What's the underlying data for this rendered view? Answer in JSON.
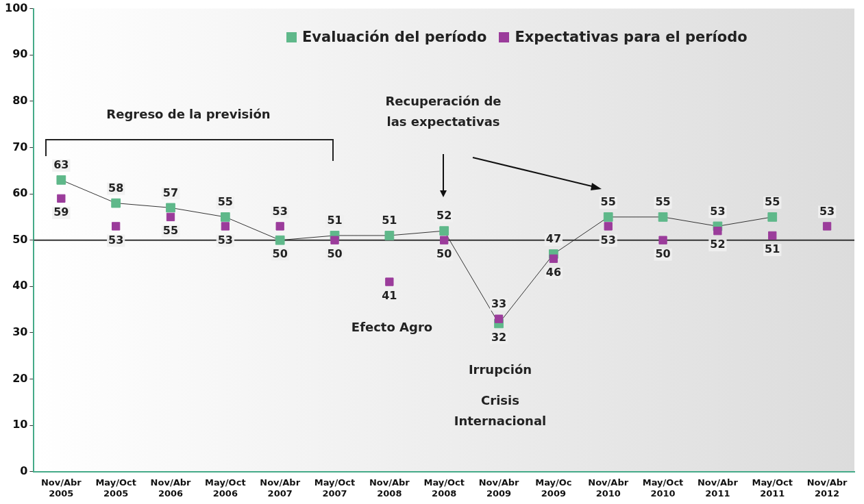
{
  "chart_data": {
    "type": "line",
    "categories": [
      "Nov/Abr 2005",
      "May/Oct 2005",
      "Nov/Abr 2006",
      "May/Oct 2006",
      "Nov/Abr 2007",
      "May/Oct 2007",
      "Nov/Abr 2008",
      "May/Oct 2008",
      "Nov/Abr 2009",
      "May/Oc 2009",
      "Nov/Abr 2010",
      "May/Oct 2010",
      "Nov/Abr 2011",
      "May/Oct 2011",
      "Nov/Abr 2012"
    ],
    "series": [
      {
        "name": "Evaluación del período",
        "type": "line",
        "color": "#5fb88a",
        "values": [
          63,
          58,
          57,
          55,
          50,
          51,
          51,
          52,
          32,
          47,
          55,
          55,
          53,
          55,
          null
        ]
      },
      {
        "name": "Expectativas para el período",
        "type": "scatter",
        "color": "#9b3c9b",
        "values": [
          59,
          53,
          55,
          53,
          53,
          50,
          41,
          50,
          33,
          46,
          53,
          50,
          52,
          51,
          53
        ]
      }
    ],
    "ylim": [
      0,
      100
    ],
    "yticks": [
      0,
      10,
      20,
      30,
      40,
      50,
      60,
      70,
      80,
      90,
      100
    ],
    "ref_lines": [
      {
        "axis": "y",
        "value": 50
      }
    ],
    "annotations": [
      "Regreso de la previsión",
      "Recuperación de las expectativas",
      "Efecto Agro",
      "Irrupción",
      "Crisis Internacional"
    ],
    "data_labels": true,
    "grid": false,
    "legend": "top right",
    "marker": "square"
  }
}
